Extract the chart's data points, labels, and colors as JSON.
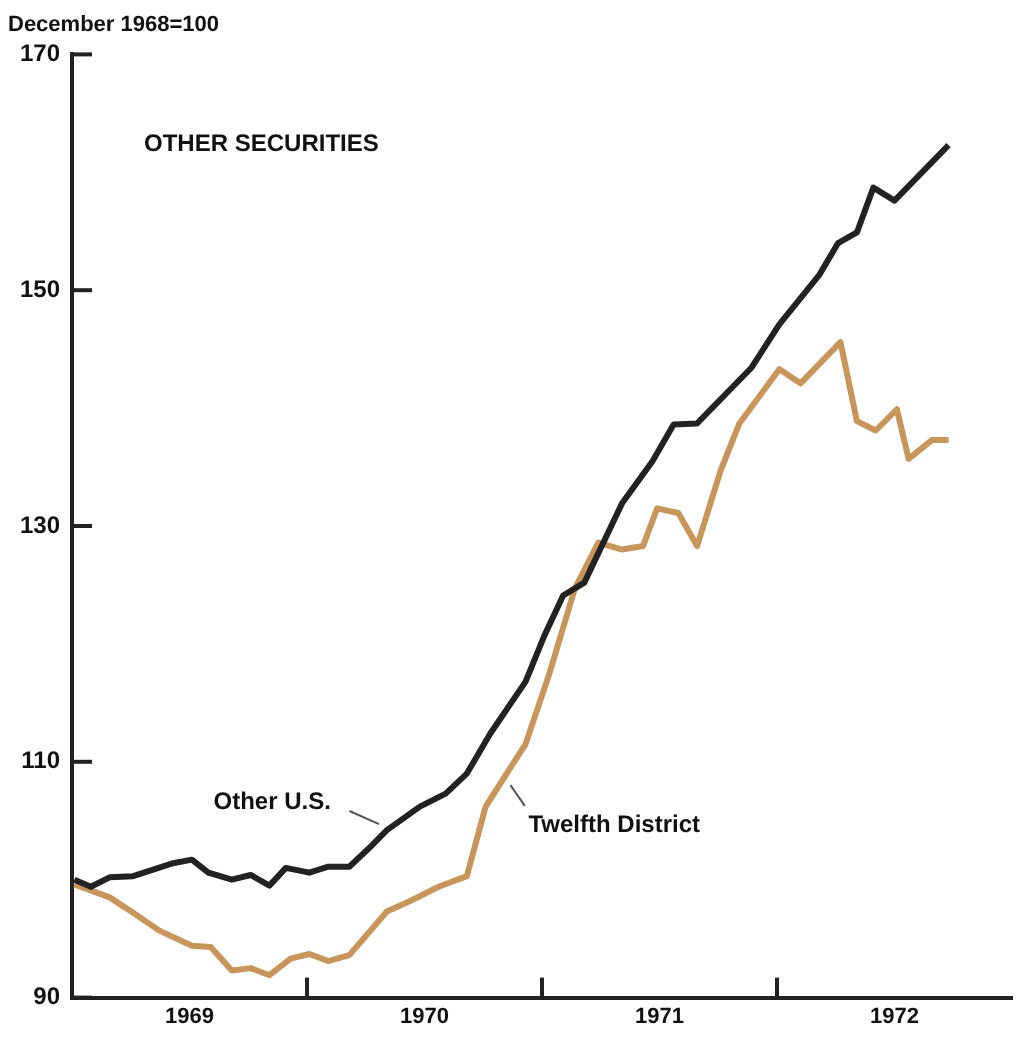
{
  "chart_data": {
    "type": "line",
    "subtitle": "December 1968=100",
    "annotations": [
      "OTHER SECURITIES"
    ],
    "xlim": [
      1969,
      1973
    ],
    "xticks": [
      {
        "value": 1969.5,
        "label": "1969"
      },
      {
        "value": 1970,
        "label": null
      },
      {
        "value": 1970.5,
        "label": "1970"
      },
      {
        "value": 1971,
        "label": null
      },
      {
        "value": 1971.5,
        "label": "1971"
      },
      {
        "value": 1972,
        "label": null
      },
      {
        "value": 1972.5,
        "label": "1972"
      }
    ],
    "ylim": [
      90,
      170
    ],
    "yticks": [
      90,
      110,
      130,
      150,
      170
    ],
    "grid": false,
    "legend": false,
    "marker": "none",
    "line_style": "solid",
    "series": [
      {
        "name": "Other U.S.",
        "color": "#222222",
        "x": [
          1969.01,
          1969.08,
          1969.16,
          1969.26,
          1969.43,
          1969.51,
          1969.58,
          1969.68,
          1969.76,
          1969.84,
          1969.91,
          1970.01,
          1970.09,
          1970.18,
          1970.26,
          1970.34,
          1970.48,
          1970.59,
          1970.68,
          1970.78,
          1970.93,
          1971.01,
          1971.09,
          1971.18,
          1971.34,
          1971.47,
          1971.56,
          1971.66,
          1971.89,
          1972.01,
          1972.18,
          1972.26,
          1972.34,
          1972.41,
          1972.5,
          1972.73
        ],
        "values": [
          100,
          99.4,
          100.2,
          100.3,
          101.4,
          101.7,
          100.6,
          100.0,
          100.4,
          99.5,
          101.0,
          100.6,
          101.1,
          101.1,
          102.6,
          104.2,
          106.2,
          107.3,
          109.0,
          112.4,
          116.8,
          120.7,
          124.1,
          125.2,
          131.9,
          135.5,
          138.6,
          138.7,
          143.4,
          147.1,
          151.3,
          154.0,
          154.9,
          158.7,
          157.6,
          162.3
        ]
      },
      {
        "name": "Twelfth District",
        "color": "#c8955a",
        "x": [
          1969.01,
          1969.16,
          1969.26,
          1969.37,
          1969.51,
          1969.59,
          1969.68,
          1969.76,
          1969.84,
          1969.93,
          1970.01,
          1970.09,
          1970.18,
          1970.34,
          1970.45,
          1970.56,
          1970.68,
          1970.76,
          1970.84,
          1970.93,
          1971.03,
          1971.14,
          1971.24,
          1971.34,
          1971.43,
          1971.49,
          1971.58,
          1971.66,
          1971.76,
          1971.84,
          1972.01,
          1972.1,
          1972.27,
          1972.34,
          1972.42,
          1972.51,
          1972.56,
          1972.66,
          1972.73
        ],
        "values": [
          99.6,
          98.5,
          97.2,
          95.7,
          94.4,
          94.3,
          92.3,
          92.5,
          91.9,
          93.3,
          93.7,
          93.1,
          93.6,
          97.3,
          98.3,
          99.4,
          100.3,
          106.2,
          108.7,
          111.5,
          117.4,
          124.7,
          128.6,
          128.0,
          128.3,
          131.5,
          131.1,
          128.3,
          134.7,
          138.7,
          143.3,
          142.1,
          145.6,
          138.9,
          138.1,
          139.9,
          135.7,
          137.3,
          137.3
        ]
      }
    ]
  }
}
